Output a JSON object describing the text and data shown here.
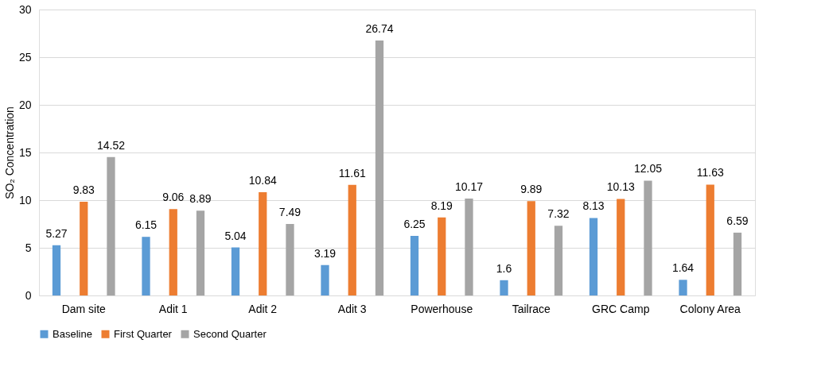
{
  "chart_data": {
    "type": "bar",
    "ylabel": "SO₂ Concentration",
    "categories": [
      "Dam site",
      "Adit 1",
      "Adit 2",
      "Adit 3",
      "Powerhouse",
      "Tailrace",
      "GRC Camp",
      "Colony Area"
    ],
    "series": [
      {
        "name": "Baseline",
        "color": "#5b9bd5",
        "values": [
          5.27,
          6.15,
          5.04,
          3.19,
          6.25,
          1.6,
          8.13,
          1.64
        ]
      },
      {
        "name": "First Quarter",
        "color": "#ed7d31",
        "values": [
          9.83,
          9.06,
          10.84,
          11.61,
          8.19,
          9.89,
          10.13,
          11.63
        ]
      },
      {
        "name": "Second Quarter",
        "color": "#a5a5a5",
        "values": [
          14.52,
          8.89,
          7.49,
          26.74,
          10.17,
          7.32,
          12.05,
          6.59
        ]
      }
    ],
    "ylim": [
      0,
      30
    ],
    "yticks": [
      0,
      5,
      10,
      15,
      20,
      25,
      30
    ],
    "grid": "y",
    "legend": "bottom",
    "data_labels": true
  }
}
